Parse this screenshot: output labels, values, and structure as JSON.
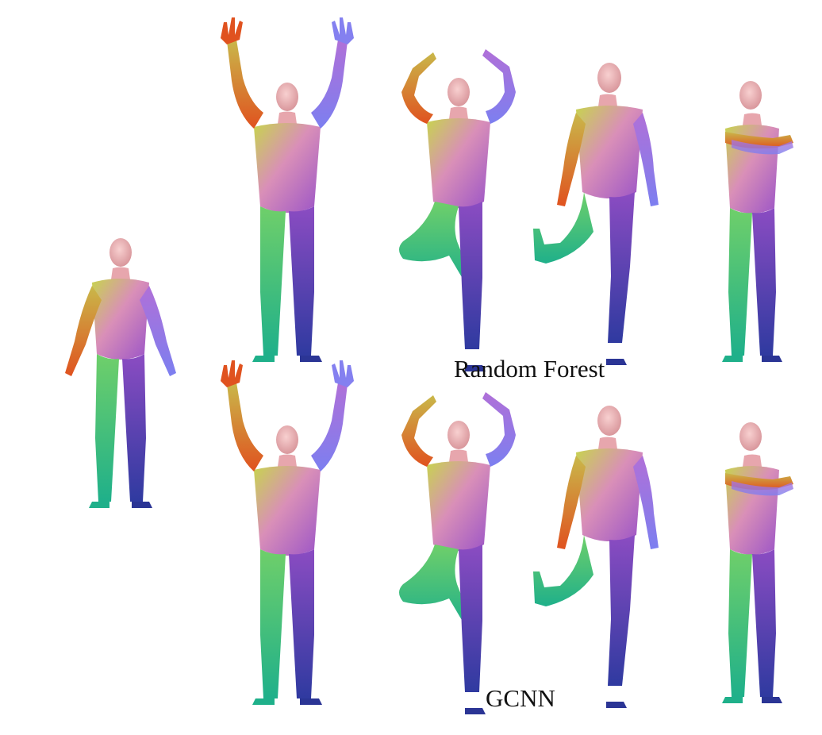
{
  "figure": {
    "row_labels": [
      "Random Forest",
      "GCNN"
    ],
    "reference_shape": "reference-human-mesh",
    "colormap": {
      "head": "#f2b7bd",
      "torso": "#d68fbf",
      "left_arm_hand": "#e05a25",
      "right_arm_hand": "#8c7bea",
      "left_leg": "#4dd08a",
      "right_leg": "#4a4eb5",
      "upper_left": "#cfd24a",
      "lower_right": "#9a4fc9"
    }
  }
}
